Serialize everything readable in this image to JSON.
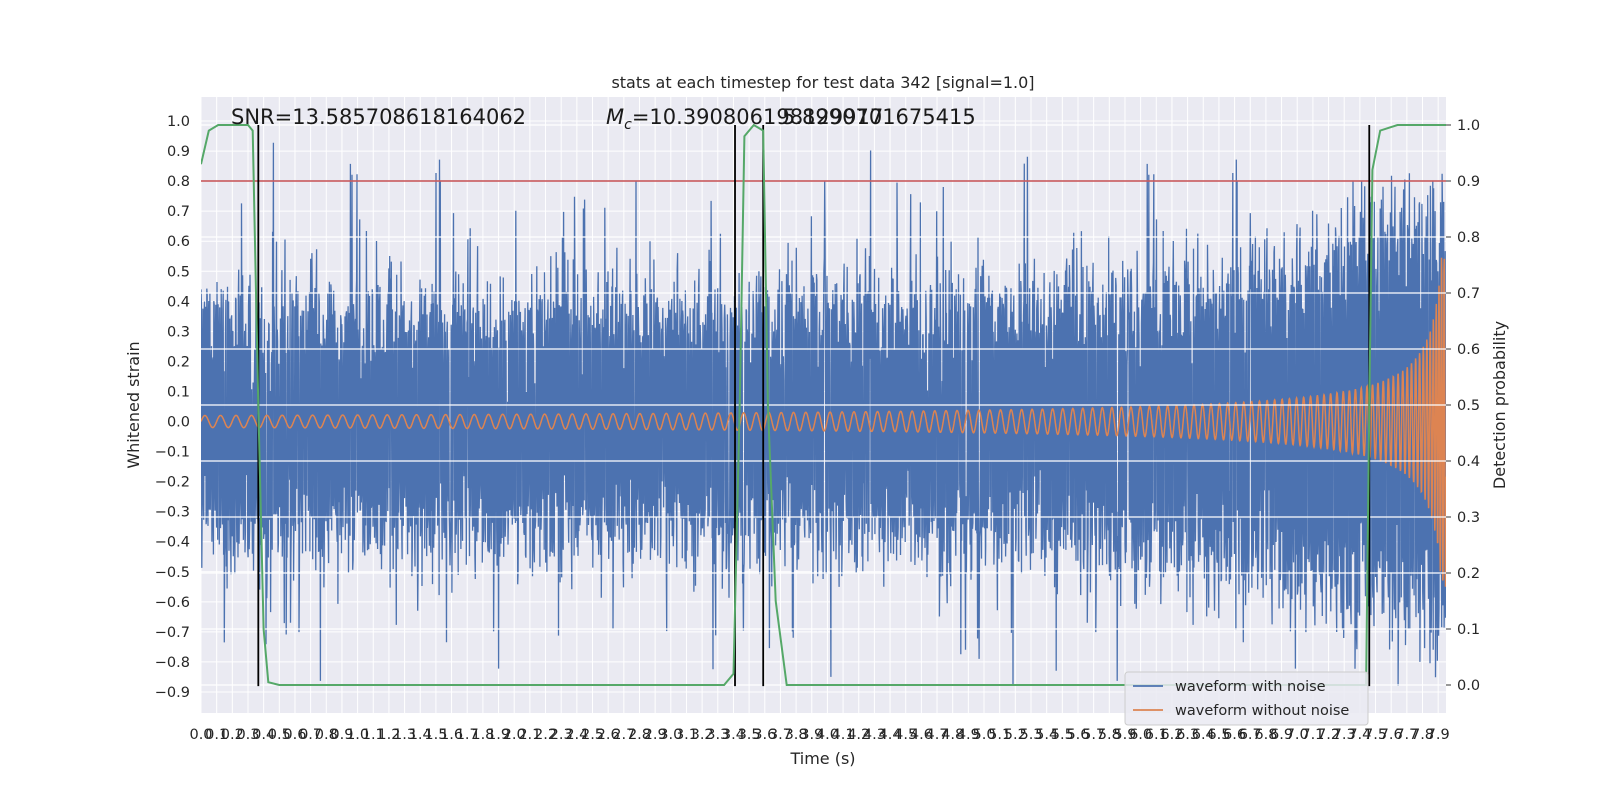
{
  "chart_data": {
    "type": "line",
    "title": "stats at each timestep for test data 342 [signal=1.0]",
    "xlabel": "Time (s)",
    "ylabel_left": "Whitened strain",
    "ylabel_right": "Detection probability",
    "xlim": [
      0.0,
      7.95
    ],
    "ylim_left": [
      -0.97,
      1.08
    ],
    "ylim_right": [
      -0.05,
      1.05
    ],
    "x_ticks": [
      "0.0",
      "0.1",
      "0.2",
      "0.3",
      "0.4",
      "0.5",
      "0.6",
      "0.7",
      "0.8",
      "0.9",
      "1.0",
      "1.1",
      "1.2",
      "1.3",
      "1.4",
      "1.5",
      "1.6",
      "1.7",
      "1.8",
      "1.9",
      "2.0",
      "2.1",
      "2.2",
      "2.3",
      "2.4",
      "2.5",
      "2.6",
      "2.7",
      "2.8",
      "2.9",
      "3.0",
      "3.1",
      "3.2",
      "3.3",
      "3.4",
      "3.5",
      "3.6",
      "3.7",
      "3.8",
      "3.9",
      "4.0",
      "4.1",
      "4.2",
      "4.3",
      "4.4",
      "4.5",
      "4.6",
      "4.7",
      "4.8",
      "4.9",
      "5.0",
      "5.1",
      "5.2",
      "5.3",
      "5.4",
      "5.5",
      "5.6",
      "5.7",
      "5.8",
      "5.9",
      "6.0",
      "6.1",
      "6.2",
      "6.3",
      "6.4",
      "6.5",
      "6.6",
      "6.7",
      "6.8",
      "6.9",
      "7.0",
      "7.1",
      "7.2",
      "7.3",
      "7.4",
      "7.5",
      "7.6",
      "7.7",
      "7.8",
      "7.9"
    ],
    "y_ticks_left": [
      "-0.9",
      "-0.8",
      "-0.7",
      "-0.6",
      "-0.5",
      "-0.4",
      "-0.3",
      "-0.2",
      "-0.1",
      "0.0",
      "0.1",
      "0.2",
      "0.3",
      "0.4",
      "0.5",
      "0.6",
      "0.7",
      "0.8",
      "0.9",
      "1.0"
    ],
    "y_ticks_right": [
      "0.0",
      "0.1",
      "0.2",
      "0.3",
      "0.4",
      "0.5",
      "0.6",
      "0.7",
      "0.8",
      "0.9",
      "1.0"
    ],
    "annotations": {
      "snr": "SNR=13.585708618164062",
      "mc_symbol": "M",
      "mc_subscript": "c",
      "mc_value": "=10.390806198129917",
      "mc_overlap": "5.8990701675415"
    },
    "threshold": {
      "value": 0.9,
      "axis": "right",
      "color": "#c44e52"
    },
    "detection_boundaries": [
      0.366,
      3.41,
      3.59,
      7.46
    ],
    "detection_probability": {
      "x": [
        0.0,
        0.05,
        0.11,
        0.2,
        0.3,
        0.33,
        0.366,
        0.4,
        0.43,
        0.5,
        1.0,
        2.0,
        3.0,
        3.34,
        3.4,
        3.44,
        3.47,
        3.53,
        3.59,
        3.62,
        3.67,
        3.74,
        4.0,
        5.0,
        6.0,
        7.0,
        7.44,
        7.46,
        7.48,
        7.53,
        7.64,
        7.95
      ],
      "y": [
        0.93,
        0.99,
        1.0,
        1.0,
        1.0,
        0.99,
        0.5,
        0.1,
        0.005,
        0.0,
        0.0,
        0.0,
        0.0,
        0.0,
        0.02,
        0.5,
        0.98,
        1.0,
        0.99,
        0.5,
        0.15,
        0.0,
        0.0,
        0.0,
        0.0,
        0.0,
        0.0,
        0.5,
        0.92,
        0.99,
        1.0,
        1.0
      ],
      "color": "#55a868"
    },
    "waveform_without_noise": {
      "description_shape": "chirp",
      "start_amplitude": 0.02,
      "end_amplitude": 0.55,
      "start_frequency_hz": 10,
      "end_frequency_hz": 30
    },
    "waveform_with_noise": {
      "envelope_start": 0.42,
      "envelope_end": 0.8,
      "peak_max": 1.0,
      "peak_min": -0.88
    },
    "series": [
      {
        "name": "waveform with noise",
        "color": "#4c72b0"
      },
      {
        "name": "waveform without noise",
        "color": "#dd8452"
      }
    ],
    "legend_position": "lower-right",
    "grid": true
  }
}
